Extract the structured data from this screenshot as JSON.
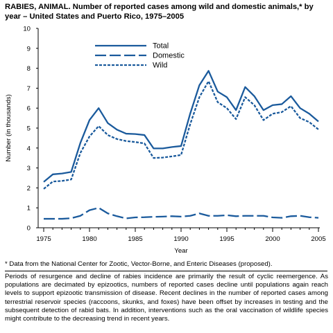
{
  "title": "RABIES, ANIMAL. Number of reported cases among wild and domestic animals,* by year – United States and Puerto Rico, 1975–2005",
  "footnote": "* Data from the National Center for Zootic, Vector-Borne, and Enteric Diseases (proposed).",
  "caption": "Periods of resurgence and decline of rabies incidence are primarily the result of cyclic reemergence. As populations are decimated by epizootics, numbers of reported cases decline until populations again reach levels to support epizootic transmission of disease. Recent declines in the number of reported cases among terrestrial reservoir species (raccoons, skunks, and foxes) have been offset by increases in testing and the subsequent detection of rabid bats. In addition, interventions such as the oral vaccination of wildlife species might contribute to the decreasing trend in recent years.",
  "colors": {
    "line": "#1a5a9c",
    "axis": "#000000"
  },
  "chart_data": {
    "type": "line",
    "xlabel": "Year",
    "ylabel": "Number (in thousands)",
    "xlim": [
      1975,
      2005
    ],
    "ylim": [
      0,
      10
    ],
    "xticks": [
      1975,
      1980,
      1985,
      1990,
      1995,
      2000,
      2005
    ],
    "yticks": [
      0,
      1,
      2,
      3,
      4,
      5,
      6,
      7,
      8,
      9,
      10
    ],
    "legend_position": "top-center",
    "x": [
      1975,
      1976,
      1977,
      1978,
      1979,
      1980,
      1981,
      1982,
      1983,
      1984,
      1985,
      1986,
      1987,
      1988,
      1989,
      1990,
      1991,
      1992,
      1993,
      1994,
      1995,
      1996,
      1997,
      1998,
      1999,
      2000,
      2001,
      2002,
      2003,
      2004,
      2005
    ],
    "series": [
      {
        "name": "Total",
        "style": "solid",
        "values": [
          2.3,
          2.68,
          2.72,
          2.8,
          4.25,
          5.4,
          6.0,
          5.25,
          4.92,
          4.72,
          4.7,
          4.65,
          3.98,
          3.98,
          4.05,
          4.1,
          5.73,
          7.15,
          7.87,
          6.83,
          6.55,
          5.9,
          7.06,
          6.6,
          5.9,
          6.15,
          6.2,
          6.6,
          6.0,
          5.72,
          5.33
        ]
      },
      {
        "name": "Domestic",
        "style": "dashed",
        "values": [
          0.45,
          0.45,
          0.45,
          0.48,
          0.6,
          0.88,
          1.0,
          0.72,
          0.58,
          0.47,
          0.52,
          0.53,
          0.55,
          0.56,
          0.58,
          0.56,
          0.6,
          0.72,
          0.6,
          0.6,
          0.63,
          0.58,
          0.6,
          0.6,
          0.6,
          0.52,
          0.5,
          0.58,
          0.6,
          0.53,
          0.5
        ]
      },
      {
        "name": "Wild",
        "style": "dotted",
        "values": [
          1.95,
          2.32,
          2.35,
          2.42,
          3.75,
          4.58,
          5.1,
          4.65,
          4.45,
          4.35,
          4.3,
          4.23,
          3.5,
          3.52,
          3.58,
          3.65,
          5.2,
          6.55,
          7.35,
          6.3,
          6.0,
          5.45,
          6.55,
          6.15,
          5.4,
          5.72,
          5.8,
          6.1,
          5.5,
          5.3,
          4.93
        ]
      }
    ]
  }
}
